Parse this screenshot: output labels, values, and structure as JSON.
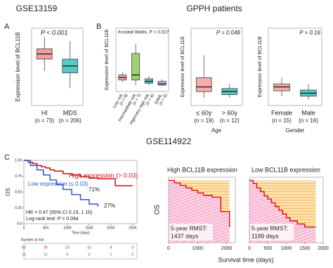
{
  "chart_data": [
    {
      "type": "box",
      "title": "GSE13159",
      "panel_label": "A",
      "annotation": "P < 0.001",
      "ylabel": "Expression level of BCL11B",
      "categories": [
        "HI",
        "MDS"
      ],
      "counts": [
        "(n = 73)",
        "(n = 206)"
      ],
      "colors": [
        "#f07f7a",
        "#1fb5b0"
      ],
      "ylim": [
        1,
        10
      ],
      "boxes": [
        {
          "low": 5.0,
          "q1": 6.4,
          "median": 7.0,
          "q3": 7.6,
          "high": 9.0
        },
        {
          "low": 3.0,
          "q1": 4.8,
          "median": 5.6,
          "q3": 6.4,
          "high": 8.5
        }
      ]
    },
    {
      "type": "box",
      "group_title": "GPPH patients",
      "panel_label": "B",
      "annotation": "Kruskal-Wallis, P = 0.027",
      "ylabel": "Expression level of BCL11B",
      "categories": [
        "Low risk",
        "Intermediate risk",
        "High/very high risk",
        "SAML"
      ],
      "counts": [
        "(n = 8)",
        "(n = 7)",
        "(n = 6)",
        "(n = 6)"
      ],
      "colors": [
        "#f3908c",
        "#7cc242",
        "#27b7b0",
        "#c38ee0"
      ],
      "ylim": [
        0,
        10
      ],
      "boxes": [
        {
          "low": 1.5,
          "q1": 1.8,
          "median": 2.2,
          "q3": 2.6,
          "high": 3.0
        },
        {
          "low": 1.0,
          "q1": 1.8,
          "median": 2.6,
          "q3": 6.0,
          "high": 7.5
        },
        {
          "low": 1.0,
          "q1": 1.3,
          "median": 1.6,
          "q3": 2.0,
          "high": 2.4
        },
        {
          "low": 0.8,
          "q1": 1.0,
          "median": 1.2,
          "q3": 1.6,
          "high": 1.9
        }
      ]
    },
    {
      "type": "box",
      "annotation": "P = 0.048",
      "ylabel": "Expression level of BCL11B",
      "xlabel": "Age",
      "categories": [
        "≤ 60y",
        "> 60y"
      ],
      "counts": [
        "(n = 19)",
        "(n = 12)"
      ],
      "colors": [
        "#f3908c",
        "#1fb5b0"
      ],
      "ylim": [
        0,
        10
      ],
      "boxes": [
        {
          "low": 1.0,
          "q1": 1.8,
          "median": 2.4,
          "q3": 3.6,
          "high": 6.5
        },
        {
          "low": 1.0,
          "q1": 1.4,
          "median": 1.8,
          "q3": 2.2,
          "high": 2.8
        }
      ]
    },
    {
      "type": "box",
      "annotation": "P = 0.16",
      "ylabel": "Expression level of BCL11B",
      "xlabel": "Gender",
      "categories": [
        "Female",
        "Male"
      ],
      "counts": [
        "(n = 15)",
        "(n = 16)"
      ],
      "colors": [
        "#f3908c",
        "#1fb5b0"
      ],
      "ylim": [
        0,
        10
      ],
      "boxes": [
        {
          "low": 1.2,
          "q1": 1.9,
          "median": 2.4,
          "q3": 2.8,
          "high": 3.6
        },
        {
          "low": 0.8,
          "q1": 1.2,
          "median": 1.6,
          "q3": 2.0,
          "high": 2.8
        }
      ]
    },
    {
      "type": "km",
      "title": "GSE114922",
      "panel_label": "C",
      "ylabel": "OS",
      "xlabel": "Time (days)",
      "xlim": [
        0,
        2600
      ],
      "xticks": [
        0,
        500,
        1000,
        1500,
        2000,
        2500
      ],
      "ylim": [
        0,
        1
      ],
      "yticks": [
        {
          "value": 0,
          "label": "0.0"
        },
        {
          "value": 0.25,
          "label": "0.25"
        },
        {
          "value": 0.5,
          "label": "0.50"
        },
        {
          "value": 0.75,
          "label": "0.75"
        },
        {
          "value": 1,
          "label": "1.00"
        }
      ],
      "annotations": [
        "71%",
        "27%",
        "HR = 0.47 (95% CI 0.19, 1.16)",
        "Log-rank test: P = 0.094"
      ],
      "series": [
        {
          "name": "High expression (> 0.03)",
          "color": "#cc1111",
          "x": [
            0,
            100,
            200,
            300,
            400,
            500,
            600,
            700,
            900,
            1100,
            1300,
            1500,
            1700,
            1900,
            2100,
            2300,
            2500
          ],
          "values": [
            1,
            0.97,
            0.95,
            0.92,
            0.9,
            0.88,
            0.85,
            0.83,
            0.79,
            0.77,
            0.74,
            0.72,
            0.71,
            0.71,
            0.6,
            0.6,
            0.6
          ]
        },
        {
          "name": "Low expression (≤ 0.03)",
          "color": "#3355cc",
          "x": [
            0,
            150,
            300,
            450,
            600,
            750,
            900,
            1100,
            1300,
            1500,
            1700
          ],
          "values": [
            1,
            0.92,
            0.85,
            0.77,
            0.69,
            0.62,
            0.54,
            0.46,
            0.38,
            0.31,
            0.27
          ]
        }
      ],
      "risk_table": {
        "title": "Number at risk",
        "rows": [
          [
            63,
            35,
            23,
            16,
            9,
            3
          ],
          [
            13,
            11,
            6,
            3,
            1,
            0
          ]
        ]
      }
    },
    {
      "type": "rmst",
      "title": "High BCL11B expression",
      "ylabel": "OS",
      "xlabel": "Survival time (days)",
      "annotation": [
        "5-year RMST:",
        "1437 days"
      ],
      "xlim": [
        0,
        2300
      ],
      "xticks": [
        0,
        1000,
        2000
      ],
      "ylim": [
        0,
        1.05
      ],
      "area_colors": [
        "#f5a623",
        "#f27fb0"
      ],
      "series": [
        {
          "color": "#dd1111",
          "x": [
            0,
            200,
            400,
            600,
            800,
            1000,
            1200,
            1500,
            1800,
            2100
          ],
          "values": [
            1,
            0.96,
            0.92,
            0.88,
            0.84,
            0.8,
            0.76,
            0.73,
            0.5,
            0.25
          ]
        }
      ]
    },
    {
      "type": "rmst",
      "title": "Low BCL11B expression",
      "annotation": [
        "5-year RMST:",
        "1189 days"
      ],
      "xlim": [
        0,
        2000
      ],
      "xticks": [
        0,
        500,
        1000,
        1500,
        2000
      ],
      "ylim": [
        0,
        1.05
      ],
      "area_colors": [
        "#f5a623",
        "#f27fb0"
      ],
      "series": [
        {
          "color": "#dd1111",
          "x": [
            0,
            100,
            200,
            300,
            400,
            500,
            600,
            700,
            800,
            900,
            1000,
            1100,
            1300,
            1500,
            1800
          ],
          "values": [
            1,
            0.95,
            0.88,
            0.82,
            0.75,
            0.7,
            0.64,
            0.58,
            0.52,
            0.46,
            0.4,
            0.35,
            0.3,
            0.25,
            0.25
          ]
        }
      ]
    }
  ]
}
